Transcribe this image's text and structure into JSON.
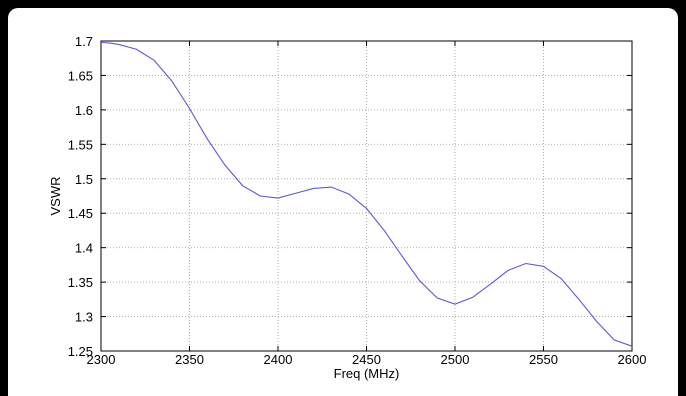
{
  "chart_data": {
    "type": "line",
    "title": "",
    "xlabel": "Freq (MHz)",
    "ylabel": "VSWR",
    "xlim": [
      2300,
      2600
    ],
    "ylim": [
      1.25,
      1.7
    ],
    "x_ticks": [
      2300,
      2350,
      2400,
      2450,
      2500,
      2550,
      2600
    ],
    "y_ticks": [
      "1.25",
      "1.3",
      "1.35",
      "1.4",
      "1.45",
      "1.5",
      "1.55",
      "1.6",
      "1.65",
      "1.7"
    ],
    "grid": true,
    "legend": "none",
    "line_color": "#5a5ad6",
    "series": [
      {
        "x": [
          2300,
          2305,
          2310,
          2320,
          2330,
          2340,
          2350,
          2360,
          2370,
          2380,
          2390,
          2400,
          2410,
          2420,
          2430,
          2440,
          2450,
          2460,
          2470,
          2480,
          2490,
          2500,
          2510,
          2520,
          2530,
          2540,
          2550,
          2560,
          2570,
          2580,
          2590,
          2600
        ],
        "values": [
          1.698,
          1.697,
          1.695,
          1.688,
          1.672,
          1.642,
          1.602,
          1.558,
          1.52,
          1.49,
          1.475,
          1.472,
          1.479,
          1.486,
          1.488,
          1.478,
          1.457,
          1.425,
          1.388,
          1.352,
          1.327,
          1.318,
          1.328,
          1.347,
          1.367,
          1.377,
          1.373,
          1.355,
          1.325,
          1.293,
          1.266,
          1.257
        ]
      }
    ]
  }
}
